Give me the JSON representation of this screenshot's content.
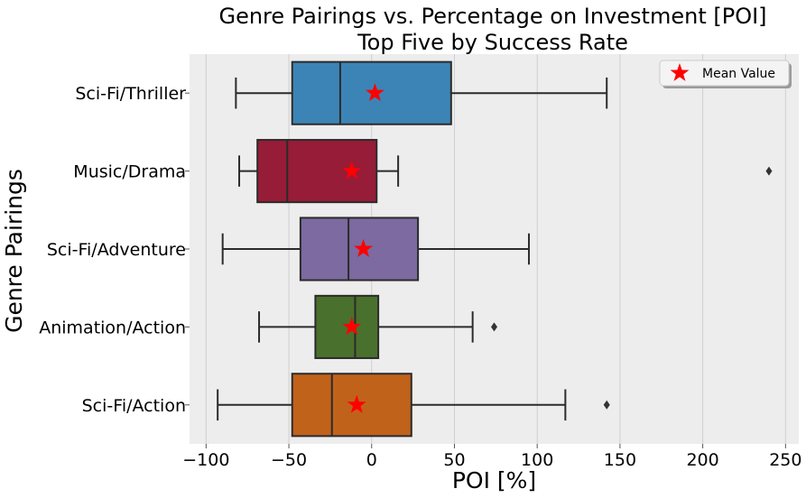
{
  "chart_data": {
    "type": "boxplot",
    "orientation": "horizontal",
    "title_lines": [
      "Genre Pairings vs. Percentage on Investment [POI]",
      "Top Five by Success Rate"
    ],
    "xlabel": "POI [%]",
    "ylabel": "Genre Pairings",
    "xlim": [
      -110,
      258
    ],
    "xticks": [
      -100,
      -50,
      0,
      50,
      100,
      150,
      200,
      250
    ],
    "xtick_labels": [
      "−100",
      "−50",
      "0",
      "50",
      "100",
      "150",
      "200",
      "250"
    ],
    "grid": true,
    "legend": {
      "position": "top-right",
      "label": "Mean Value",
      "marker": "star"
    },
    "categories": [
      "Sci-Fi/Thriller",
      "Music/Drama",
      "Sci-Fi/Adventure",
      "Animation/Action",
      "Sci-Fi/Action"
    ],
    "boxes": [
      {
        "label": "Sci-Fi/Thriller",
        "color": "#3c84b6",
        "whisker_low": -82,
        "q1": -48,
        "median": -19,
        "q3": 48,
        "whisker_high": 142,
        "mean": 2,
        "outliers": []
      },
      {
        "label": "Music/Drama",
        "color": "#971c37",
        "whisker_low": -80,
        "q1": -69,
        "median": -51,
        "q3": 3,
        "whisker_high": 16,
        "mean": -12,
        "outliers": [
          240
        ]
      },
      {
        "label": "Sci-Fi/Adventure",
        "color": "#7c6aa0",
        "whisker_low": -90,
        "q1": -43,
        "median": -14,
        "q3": 28,
        "whisker_high": 95,
        "mean": -5,
        "outliers": []
      },
      {
        "label": "Animation/Action",
        "color": "#4a702d",
        "whisker_low": -68,
        "q1": -34,
        "median": -10,
        "q3": 4,
        "whisker_high": 61,
        "mean": -12,
        "outliers": [
          74
        ]
      },
      {
        "label": "Sci-Fi/Action",
        "color": "#c1621b",
        "whisker_low": -93,
        "q1": -48,
        "median": -24,
        "q3": 24,
        "whisker_high": 117,
        "mean": -9,
        "outliers": [
          142
        ]
      }
    ],
    "mean_marker_color": "#ff0000"
  }
}
